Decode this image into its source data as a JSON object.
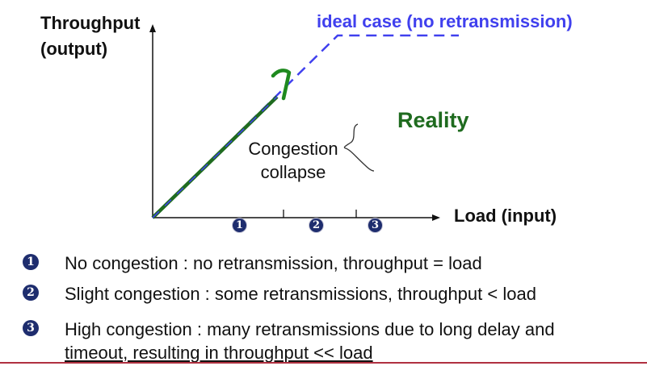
{
  "diagram": {
    "y_axis_label_line1": "Throughput",
    "y_axis_label_line2": "(output)",
    "x_axis_label": "Load (input)",
    "ideal_label": "ideal case (no retransmission)",
    "reality_label": "Reality",
    "collapse_label_line1": "Congestion",
    "collapse_label_line2": "collapse",
    "region_markers": [
      "1",
      "2",
      "3"
    ],
    "colors": {
      "ideal": "#4040ee",
      "reality": "#1f6b1f",
      "axis": "#111111",
      "badge": "#1e2d6e",
      "bottom_rule": "#b03040"
    }
  },
  "legend": [
    {
      "number": "1",
      "text": "No congestion : no retransmission, throughput = load"
    },
    {
      "number": "2",
      "text": "Slight congestion : some retransmissions, throughput < load"
    },
    {
      "number": "3",
      "text": "High congestion : many retransmissions due to long delay and",
      "text_line2": "timeout, resulting in throughput << load"
    }
  ]
}
